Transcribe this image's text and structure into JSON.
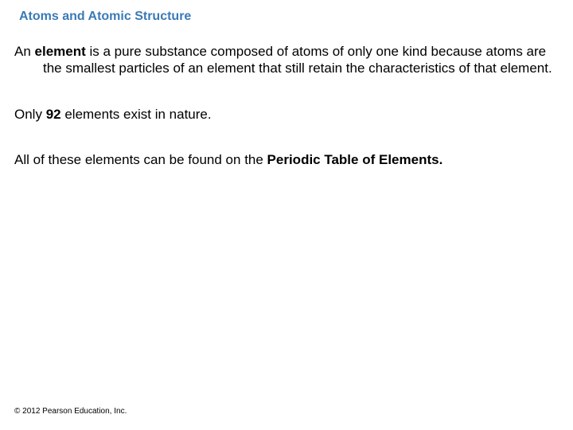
{
  "header": {
    "title": "Atoms and Atomic Structure"
  },
  "body": {
    "p1": {
      "prefix": "An ",
      "bold1": "element",
      "rest": " is a pure substance composed of atoms of only one kind because atoms are the smallest particles of an element that still retain the characteristics of that element."
    },
    "p2": {
      "prefix": "Only ",
      "bold1": "92",
      "rest": " elements exist in nature."
    },
    "p3": {
      "prefix": "All of these elements can be found on the ",
      "bold1": "Periodic Table of Elements."
    }
  },
  "footer": {
    "copyright": "© 2012 Pearson Education, Inc."
  },
  "colors": {
    "title_color": "#3a7ab5",
    "text_color": "#000000",
    "background": "#ffffff"
  },
  "typography": {
    "title_fontsize": 16,
    "body_fontsize": 17,
    "footer_fontsize": 10,
    "font_family": "Arial"
  }
}
